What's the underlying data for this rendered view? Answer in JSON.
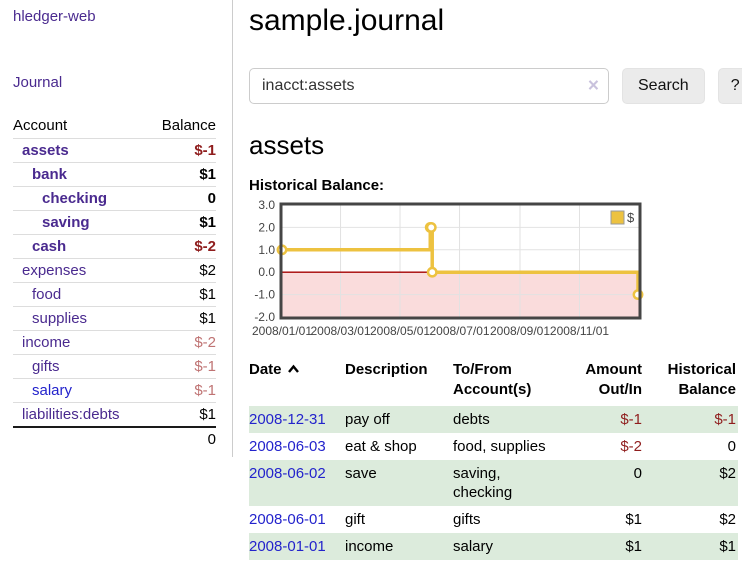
{
  "sidebar": {
    "brand": "hledger-web",
    "nav_journal": "Journal",
    "accounts": {
      "headers": {
        "account": "Account",
        "balance": "Balance"
      },
      "rows": [
        {
          "name": "assets",
          "balance": "$-1"
        },
        {
          "name": "bank",
          "balance": "$1"
        },
        {
          "name": "checking",
          "balance": "0"
        },
        {
          "name": "saving",
          "balance": "$1"
        },
        {
          "name": "cash",
          "balance": "$-2"
        },
        {
          "name": "expenses",
          "balance": "$2"
        },
        {
          "name": "food",
          "balance": "$1"
        },
        {
          "name": "supplies",
          "balance": "$1"
        },
        {
          "name": "income",
          "balance": "$-2"
        },
        {
          "name": "gifts",
          "balance": "$-1"
        },
        {
          "name": "salary",
          "balance": "$-1"
        },
        {
          "name": "liabilities:debts",
          "balance": "$1"
        }
      ],
      "total": "0"
    }
  },
  "main": {
    "title": "sample.journal",
    "search": {
      "value": "inacct:assets",
      "clear_icon": "×",
      "button": "Search",
      "help_button": "?"
    },
    "section_title": "assets",
    "chart_label": "Historical Balance:",
    "chart_data": {
      "type": "line",
      "step": true,
      "title": "Historical Balance",
      "xmin": "2008-01-01",
      "xmax": "2009-01-01",
      "ylim": [
        -2,
        3
      ],
      "y_ticks": [
        "3.0",
        "2.0",
        "1.0",
        "0.0",
        "-1.0",
        "-2.0"
      ],
      "x_ticks": [
        {
          "date": "2008-01-01",
          "label": "2008/01/01"
        },
        {
          "date": "2008-03-01",
          "label": "2008/03/01"
        },
        {
          "date": "2008-05-01",
          "label": "2008/05/01"
        },
        {
          "date": "2008-07-01",
          "label": "2008/07/01"
        },
        {
          "date": "2008-09-01",
          "label": "2008/09/01"
        },
        {
          "date": "2008-11-01",
          "label": "2008/11/01"
        }
      ],
      "series": [
        {
          "name": "$",
          "color": "#edc240",
          "points": [
            [
              "2008-01-01",
              1
            ],
            [
              "2008-06-01",
              2
            ],
            [
              "2008-06-02",
              2
            ],
            [
              "2008-06-03",
              0
            ],
            [
              "2008-12-31",
              -1
            ]
          ]
        }
      ],
      "legend_position": "top-right",
      "grid": true,
      "grid_color": "#e2e2e2",
      "zero_line_color": "#a40000",
      "negative_region_color": "#fadcdc",
      "border_color": "#454545"
    },
    "register": {
      "headers": {
        "date": "Date",
        "description": "Description",
        "accounts": "To/From Account(s)",
        "amount": "Amount Out/In",
        "balance": "Historical Balance"
      },
      "rows": [
        {
          "date": "2008-12-31",
          "description": "pay off",
          "accounts": "debts",
          "amount": "$-1",
          "balance": "$-1"
        },
        {
          "date": "2008-06-03",
          "description": "eat & shop",
          "accounts": "food, supplies",
          "amount": "$-2",
          "balance": "0"
        },
        {
          "date": "2008-06-02",
          "description": "save",
          "accounts": "saving, checking",
          "amount": "0",
          "balance": "$2"
        },
        {
          "date": "2008-06-01",
          "description": "gift",
          "accounts": "gifts",
          "amount": "$1",
          "balance": "$2"
        },
        {
          "date": "2008-01-01",
          "description": "income",
          "accounts": "salary",
          "amount": "$1",
          "balance": "$1"
        }
      ]
    }
  },
  "colors": {
    "accent_purple": "#4a2a8f",
    "link_blue": "#2323cc",
    "negative_dark": "#8f1d1d",
    "negative_muted": "#bf7373",
    "row_stripe_green": "#dcebdc",
    "series_yellow": "#edc240"
  }
}
